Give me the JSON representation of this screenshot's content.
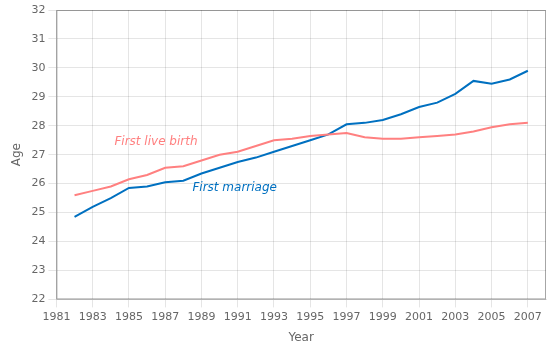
{
  "chart_data": {
    "type": "line",
    "x": [
      1982,
      1983,
      1984,
      1985,
      1986,
      1987,
      1988,
      1989,
      1990,
      1991,
      1992,
      1993,
      1994,
      1995,
      1996,
      1997,
      1998,
      1999,
      2000,
      2001,
      2002,
      2003,
      2004,
      2005,
      2006,
      2007
    ],
    "series": [
      {
        "color": "#FF8080",
        "values": [
          25.6,
          25.75,
          25.9,
          26.15,
          26.3,
          26.55,
          26.6,
          26.8,
          27.0,
          27.1,
          27.3,
          27.5,
          27.55,
          27.65,
          27.7,
          27.75,
          27.6,
          27.55,
          27.55,
          27.6,
          27.65,
          27.7,
          27.8,
          27.95,
          28.05,
          28.1
        ]
      },
      {
        "color": "#0070C0",
        "values": [
          24.85,
          25.2,
          25.5,
          25.85,
          25.9,
          26.05,
          26.1,
          26.35,
          26.55,
          26.75,
          26.9,
          27.1,
          27.3,
          27.5,
          27.7,
          28.05,
          28.1,
          28.2,
          28.4,
          28.65,
          28.8,
          29.1,
          29.55,
          29.45,
          29.6,
          29.9
        ]
      }
    ],
    "xlabel": "Year",
    "ylabel": "Age",
    "xlim": [
      1981,
      2008
    ],
    "ylim": [
      22,
      32
    ],
    "xticks": [
      1981,
      1983,
      1985,
      1987,
      1989,
      1991,
      1993,
      1995,
      1997,
      1999,
      2001,
      2003,
      2005,
      2007
    ],
    "yticks": [
      22,
      23,
      24,
      25,
      26,
      27,
      28,
      29,
      30,
      31,
      32
    ],
    "grid": true,
    "annotations": [
      {
        "text": "First live birth",
        "x": 1984.2,
        "y": 27.45,
        "color": "#FF8080"
      },
      {
        "text": "First marriage",
        "x": 1988.5,
        "y": 25.85,
        "color": "#0070C0"
      }
    ]
  }
}
